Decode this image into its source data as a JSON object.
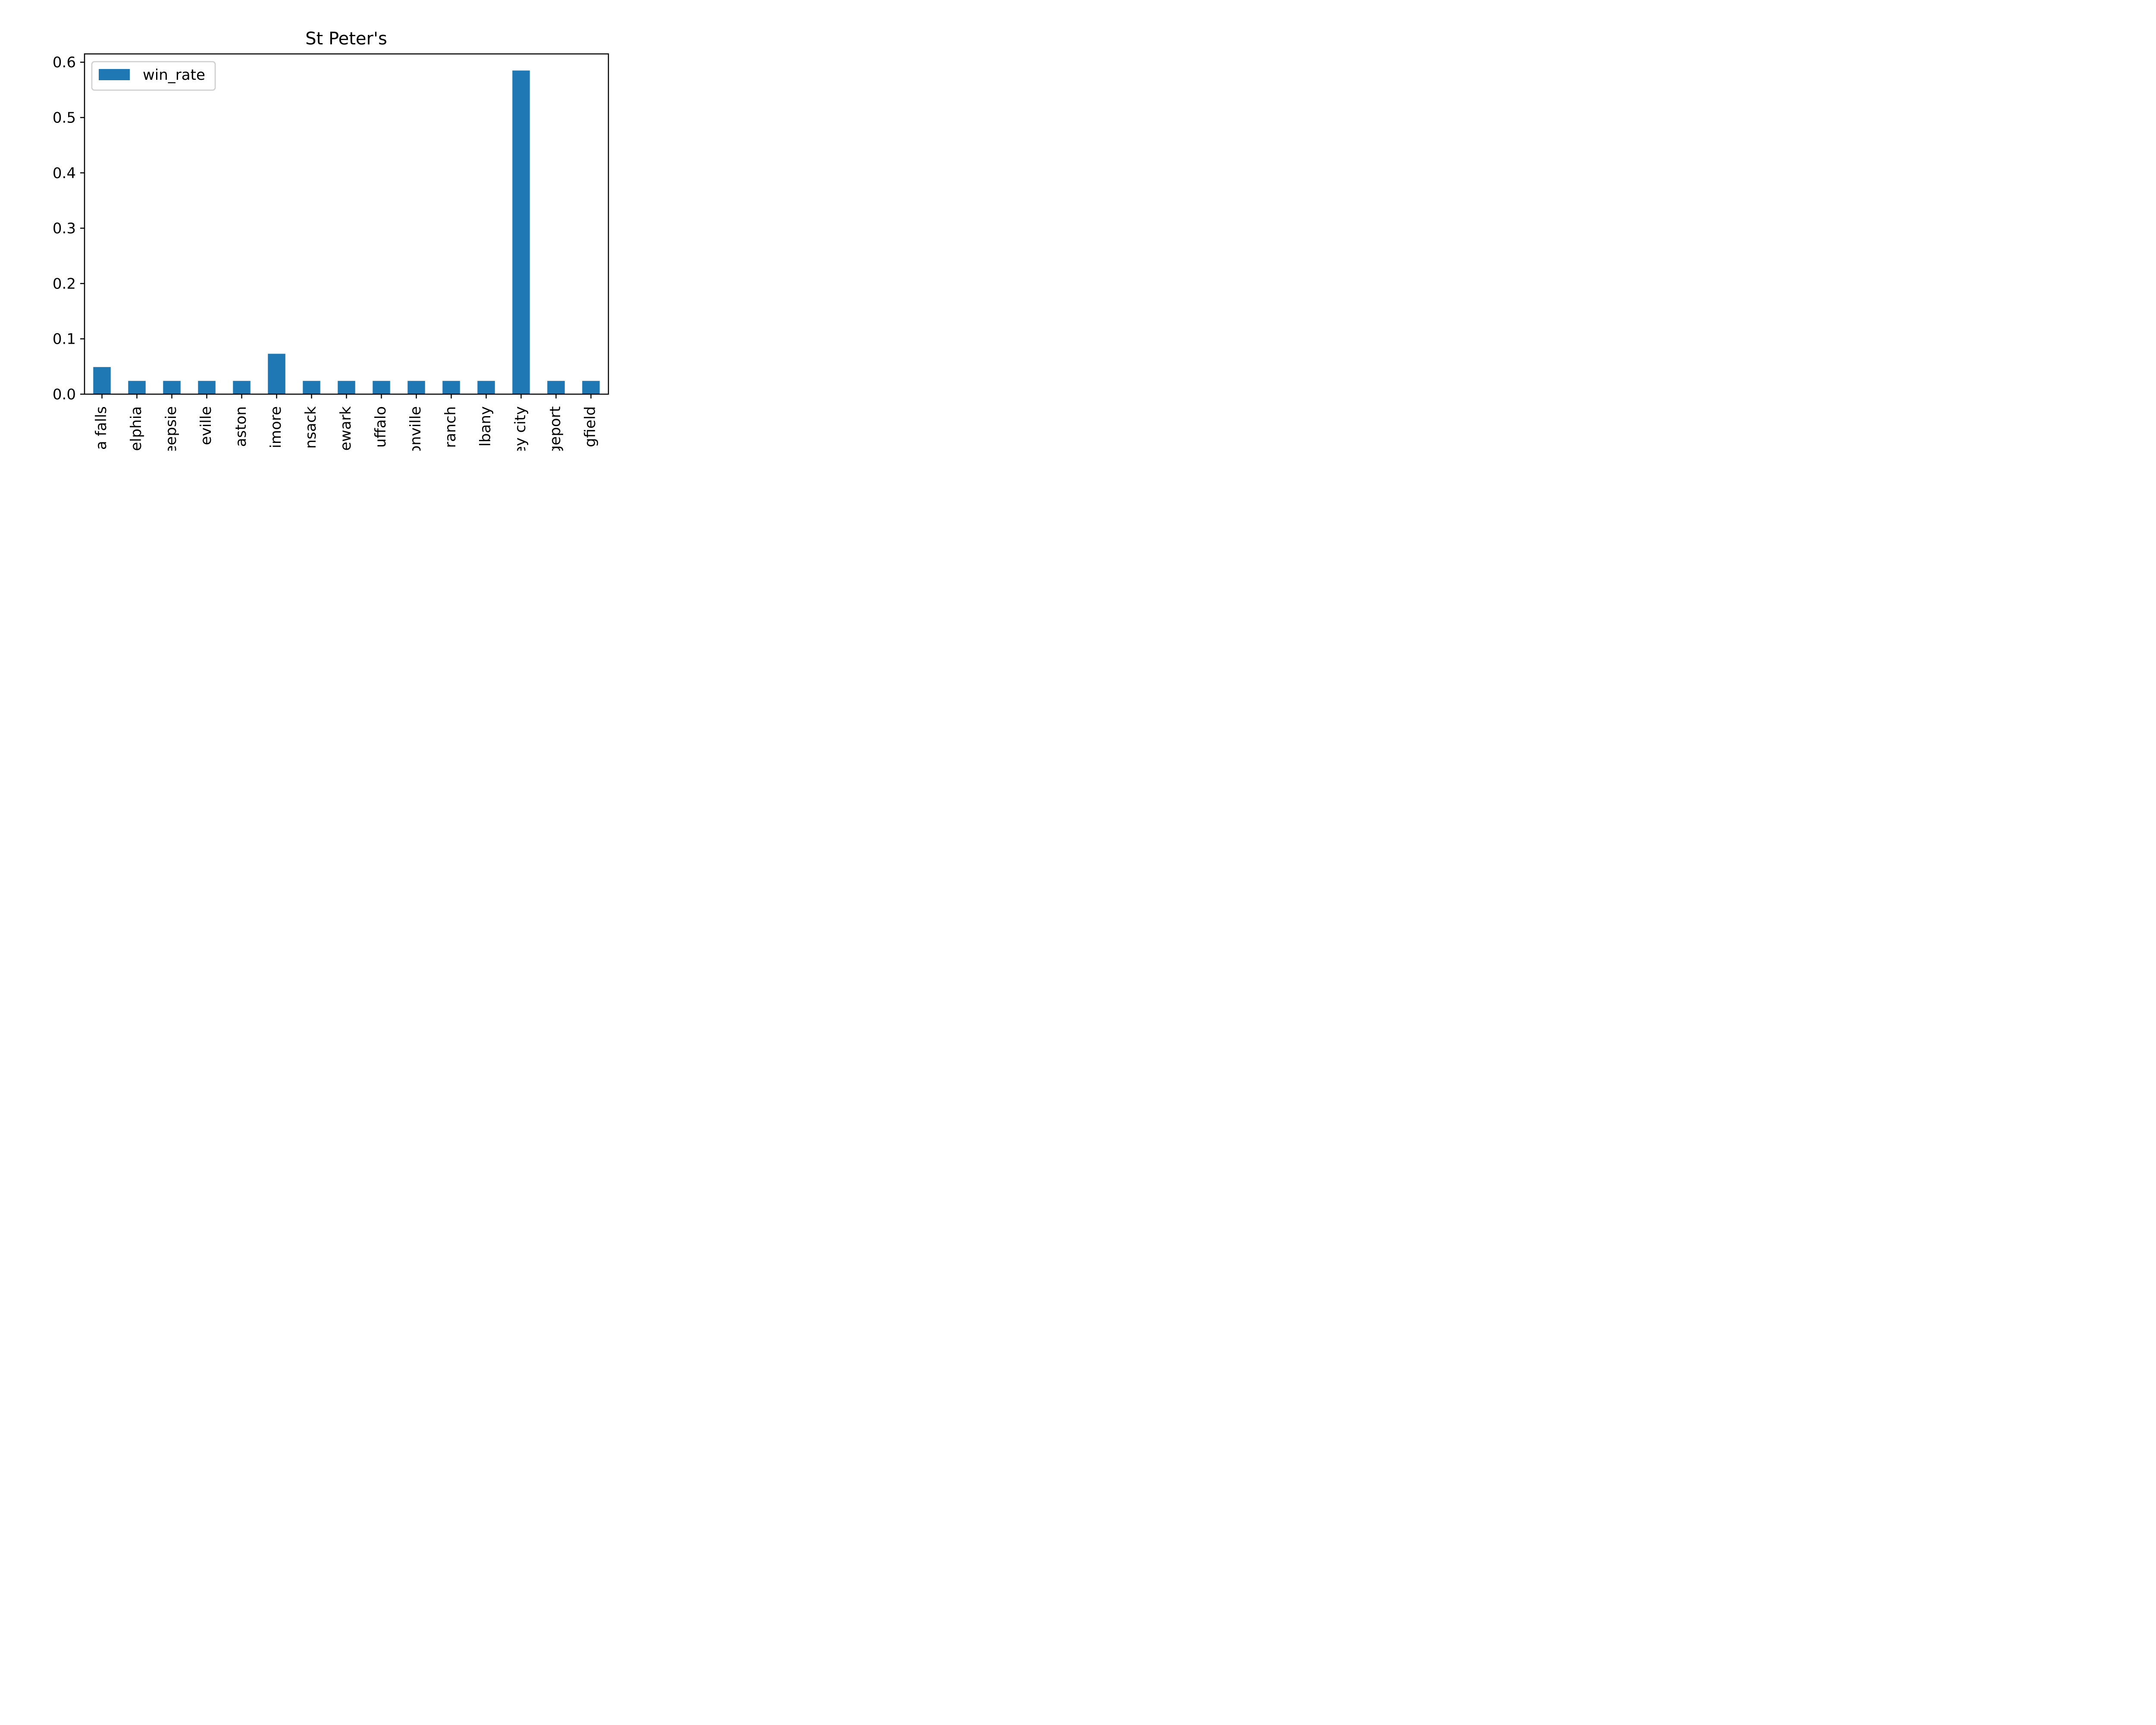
{
  "chart_data": {
    "type": "bar",
    "title": "St Peter's",
    "xlabel": "",
    "ylabel": "",
    "categories": [
      "a falls",
      "elphia",
      "eepsie",
      "eville",
      "aston",
      "imore",
      "nsack",
      "ewark",
      "uffalo",
      "onville",
      "ranch",
      "lbany",
      "ey city",
      "geport",
      "gfield"
    ],
    "series": [
      {
        "name": "win_rate",
        "color": "#1f77b4",
        "values": [
          0.049,
          0.024,
          0.024,
          0.024,
          0.024,
          0.073,
          0.024,
          0.024,
          0.024,
          0.024,
          0.024,
          0.024,
          0.585,
          0.024,
          0.024
        ]
      }
    ],
    "ylim": [
      0,
      0.615
    ],
    "yticks": [
      0.0,
      0.1,
      0.2,
      0.3,
      0.4,
      0.5,
      0.6
    ],
    "ytick_labels": [
      "0.0",
      "0.1",
      "0.2",
      "0.3",
      "0.4",
      "0.5",
      "0.6"
    ],
    "legend": {
      "position": "top-left",
      "entries": [
        "win_rate"
      ]
    },
    "grid": false
  }
}
